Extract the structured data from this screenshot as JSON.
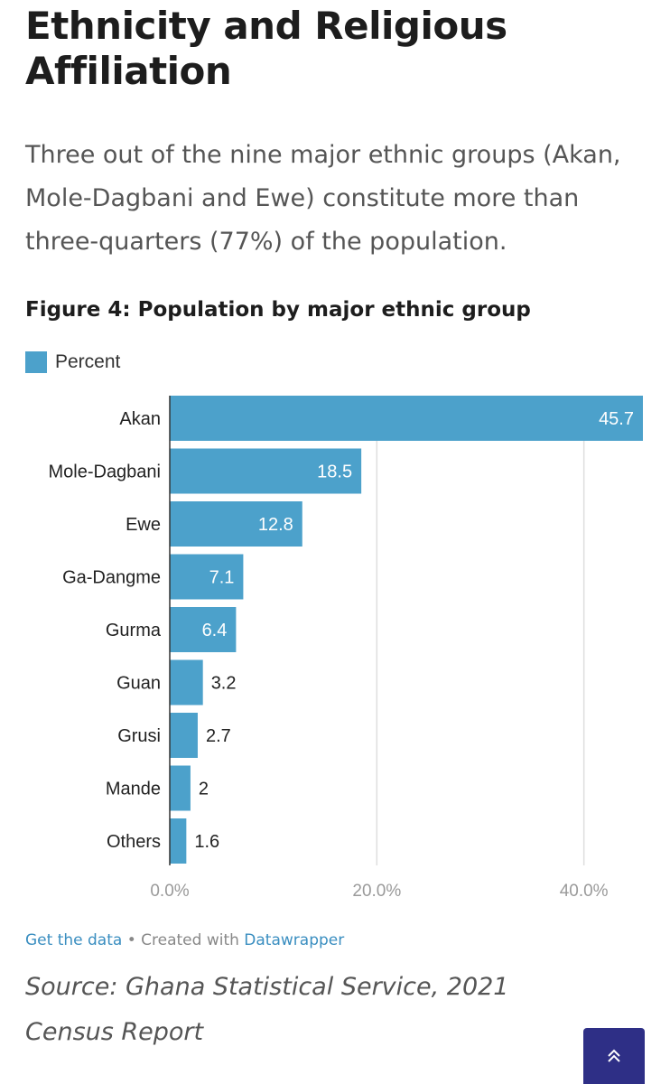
{
  "article": {
    "heading": "Ethnicity and Religious Affiliation",
    "intro": "Three out of the nine major ethnic groups (Akan, Mole-Dagbani and Ewe) constitute more than three-quarters (77%) of the population."
  },
  "chart_data": {
    "type": "bar",
    "orientation": "horizontal",
    "title": "Figure 4: Population by major ethnic group",
    "legend": [
      "Percent"
    ],
    "categories": [
      "Akan",
      "Mole-Dagbani",
      "Ewe",
      "Ga-Dangme",
      "Gurma",
      "Guan",
      "Grusi",
      "Mande",
      "Others"
    ],
    "series": [
      {
        "name": "Percent",
        "values": [
          45.7,
          18.5,
          12.8,
          7.1,
          6.4,
          3.2,
          2.7,
          2,
          1.6
        ],
        "color": "#4ca1cb"
      }
    ],
    "value_labels": [
      "45.7",
      "18.5",
      "12.8",
      "7.1",
      "6.4",
      "3.2",
      "2.7",
      "2",
      "1.6"
    ],
    "xlim": [
      0,
      45.7
    ],
    "xticks": [
      0,
      20,
      40
    ],
    "xtick_labels": [
      "0.0%",
      "20.0%",
      "40.0%"
    ],
    "grid": true
  },
  "footer": {
    "get_data": "Get the data",
    "separator": " • Created with ",
    "datawrapper": "Datawrapper"
  },
  "source": "Source: Ghana Statistical Service, 2021 Census Report",
  "colors": {
    "bar": "#4ca1cb",
    "grid": "#dedede",
    "scroll_button": "#2e2f86"
  },
  "icons": {
    "scroll_top": "double-chevron-up-icon"
  }
}
